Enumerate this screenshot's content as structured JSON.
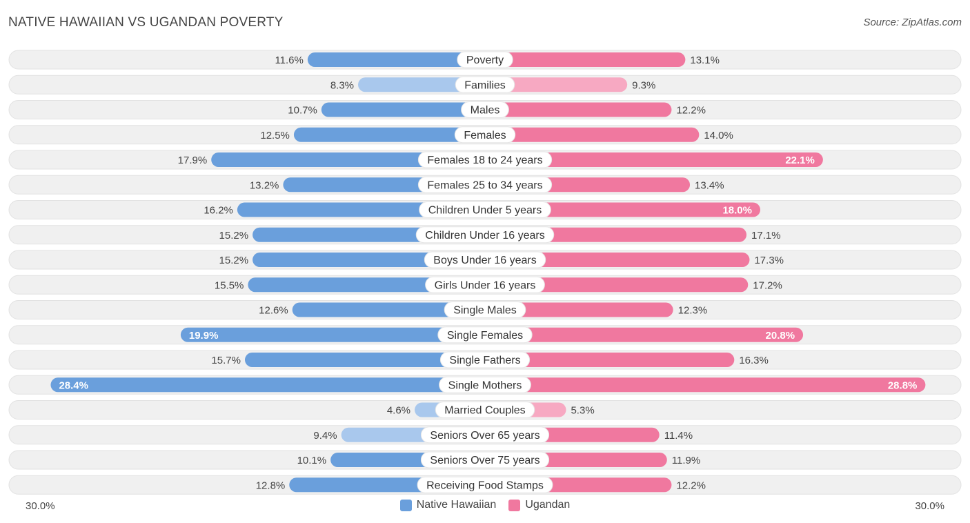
{
  "header": {
    "title": "NATIVE HAWAIIAN VS UGANDAN POVERTY",
    "source": "Source: ZipAtlas.com"
  },
  "colors": {
    "left_bar": "#6a9fdc",
    "left_bar_light": "#a9c8ed",
    "right_bar": "#f0789f",
    "right_bar_light": "#f7a9c2",
    "row_bg": "#f0f0f0"
  },
  "chart_data": {
    "type": "bar",
    "orientation": "horizontal-diverging",
    "title": "NATIVE HAWAIIAN VS UGANDAN POVERTY",
    "xlim": [
      0,
      30
    ],
    "axis_min_label": "30.0%",
    "axis_max_label": "30.0%",
    "categories": [
      "Poverty",
      "Families",
      "Males",
      "Females",
      "Females 18 to 24 years",
      "Females 25 to 34 years",
      "Children Under 5 years",
      "Children Under 16 years",
      "Boys Under 16 years",
      "Girls Under 16 years",
      "Single Males",
      "Single Females",
      "Single Fathers",
      "Single Mothers",
      "Married Couples",
      "Seniors Over 65 years",
      "Seniors Over 75 years",
      "Receiving Food Stamps"
    ],
    "series": [
      {
        "name": "Native Hawaiian",
        "values": [
          11.6,
          8.3,
          10.7,
          12.5,
          17.9,
          13.2,
          16.2,
          15.2,
          15.2,
          15.5,
          12.6,
          19.9,
          15.7,
          28.4,
          4.6,
          9.4,
          10.1,
          12.8
        ],
        "labels": [
          "11.6%",
          "8.3%",
          "10.7%",
          "12.5%",
          "17.9%",
          "13.2%",
          "16.2%",
          "15.2%",
          "15.2%",
          "15.5%",
          "12.6%",
          "19.9%",
          "15.7%",
          "28.4%",
          "4.6%",
          "9.4%",
          "10.1%",
          "12.8%"
        ]
      },
      {
        "name": "Ugandan",
        "values": [
          13.1,
          9.3,
          12.2,
          14.0,
          22.1,
          13.4,
          18.0,
          17.1,
          17.3,
          17.2,
          12.3,
          20.8,
          16.3,
          28.8,
          5.3,
          11.4,
          11.9,
          12.2
        ],
        "labels": [
          "13.1%",
          "9.3%",
          "12.2%",
          "14.0%",
          "22.1%",
          "13.4%",
          "18.0%",
          "17.1%",
          "17.3%",
          "17.2%",
          "12.3%",
          "20.8%",
          "16.3%",
          "28.8%",
          "5.3%",
          "11.4%",
          "11.9%",
          "12.2%"
        ]
      }
    ],
    "legend": [
      "Native Hawaiian",
      "Ugandan"
    ]
  }
}
